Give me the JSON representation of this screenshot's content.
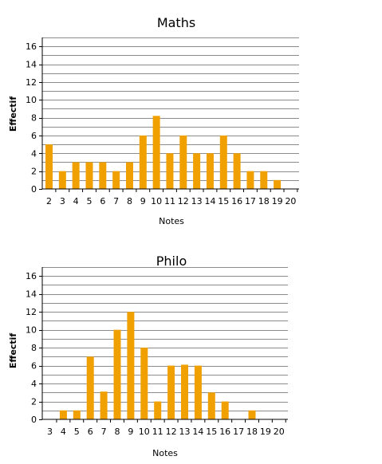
{
  "chart_data": [
    {
      "type": "bar",
      "title": "Maths",
      "xlabel": "Notes",
      "ylabel": "Effectif",
      "categories": [
        "2",
        "3",
        "4",
        "5",
        "6",
        "7",
        "8",
        "9",
        "10",
        "11",
        "12",
        "13",
        "14",
        "15",
        "16",
        "17",
        "18",
        "19",
        "20"
      ],
      "values": [
        5,
        2,
        3,
        3,
        3,
        2,
        3,
        6,
        8.2,
        4,
        6,
        4,
        4,
        6,
        4,
        2,
        2,
        1,
        0
      ],
      "ylim": [
        0,
        17
      ],
      "yticks": [
        0,
        2,
        4,
        6,
        8,
        10,
        12,
        14,
        16
      ],
      "grid": true,
      "bar_color": "#f0a000"
    },
    {
      "type": "bar",
      "title": "Philo",
      "xlabel": "Notes",
      "ylabel": "Effectif",
      "categories": [
        "3",
        "4",
        "5",
        "6",
        "7",
        "8",
        "9",
        "10",
        "11",
        "12",
        "13",
        "14",
        "15",
        "16",
        "17",
        "18",
        "19",
        "20"
      ],
      "values": [
        0,
        1,
        1,
        7,
        3.1,
        10,
        12,
        8,
        2,
        6,
        6.1,
        6,
        3,
        2,
        0,
        1,
        0,
        0
      ],
      "ylim": [
        0,
        17
      ],
      "yticks": [
        0,
        2,
        4,
        6,
        8,
        10,
        12,
        14,
        16
      ],
      "grid": true,
      "bar_color": "#f0a000"
    }
  ]
}
